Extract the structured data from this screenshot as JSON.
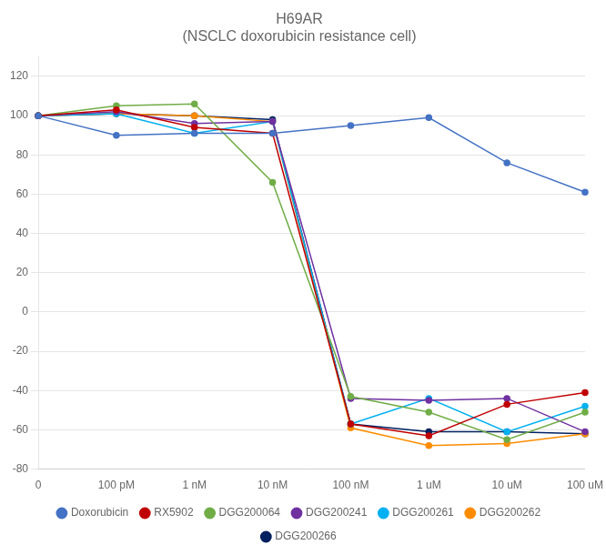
{
  "chart_data": {
    "type": "line",
    "title": "H69AR\n(NSCLC doxorubicin resistance cell)",
    "categories": [
      "0",
      "100 pM",
      "1 nM",
      "10 nM",
      "100 nM",
      "1 uM",
      "10 uM",
      "100 uM"
    ],
    "series": [
      {
        "name": "Doxorubicin",
        "color": "#4472C4",
        "values": [
          100,
          90,
          91,
          91,
          95,
          99,
          76,
          61
        ]
      },
      {
        "name": "RX5902",
        "color": "#C00000",
        "values": [
          100,
          103,
          94,
          91,
          -57,
          -63,
          -47,
          -41
        ]
      },
      {
        "name": "DGG200064",
        "color": "#70AD47",
        "values": [
          100,
          105,
          106,
          66,
          -43,
          -51,
          -65,
          -51
        ]
      },
      {
        "name": "DGG200241",
        "color": "#7030A0",
        "values": [
          100,
          102,
          96,
          97,
          -44,
          -45,
          -44,
          -61
        ]
      },
      {
        "name": "DGG200261",
        "color": "#00B0F0",
        "values": [
          100,
          101,
          91,
          97,
          -57,
          -44,
          -61,
          -48
        ]
      },
      {
        "name": "DGG200262",
        "color": "#FF8C00",
        "values": [
          100,
          101,
          100,
          97,
          -59,
          -68,
          -67,
          -62
        ]
      },
      {
        "name": "DGG200266",
        "color": "#002060",
        "values": [
          100,
          101,
          100,
          98,
          -57,
          -61,
          -61,
          -62
        ]
      }
    ],
    "ylim": [
      -80,
      130
    ],
    "yticks": [
      -80,
      -60,
      -40,
      -20,
      0,
      20,
      40,
      60,
      80,
      100,
      120
    ],
    "grid": true,
    "legend": "bottom",
    "marker": "circle",
    "line_style": "solid"
  }
}
